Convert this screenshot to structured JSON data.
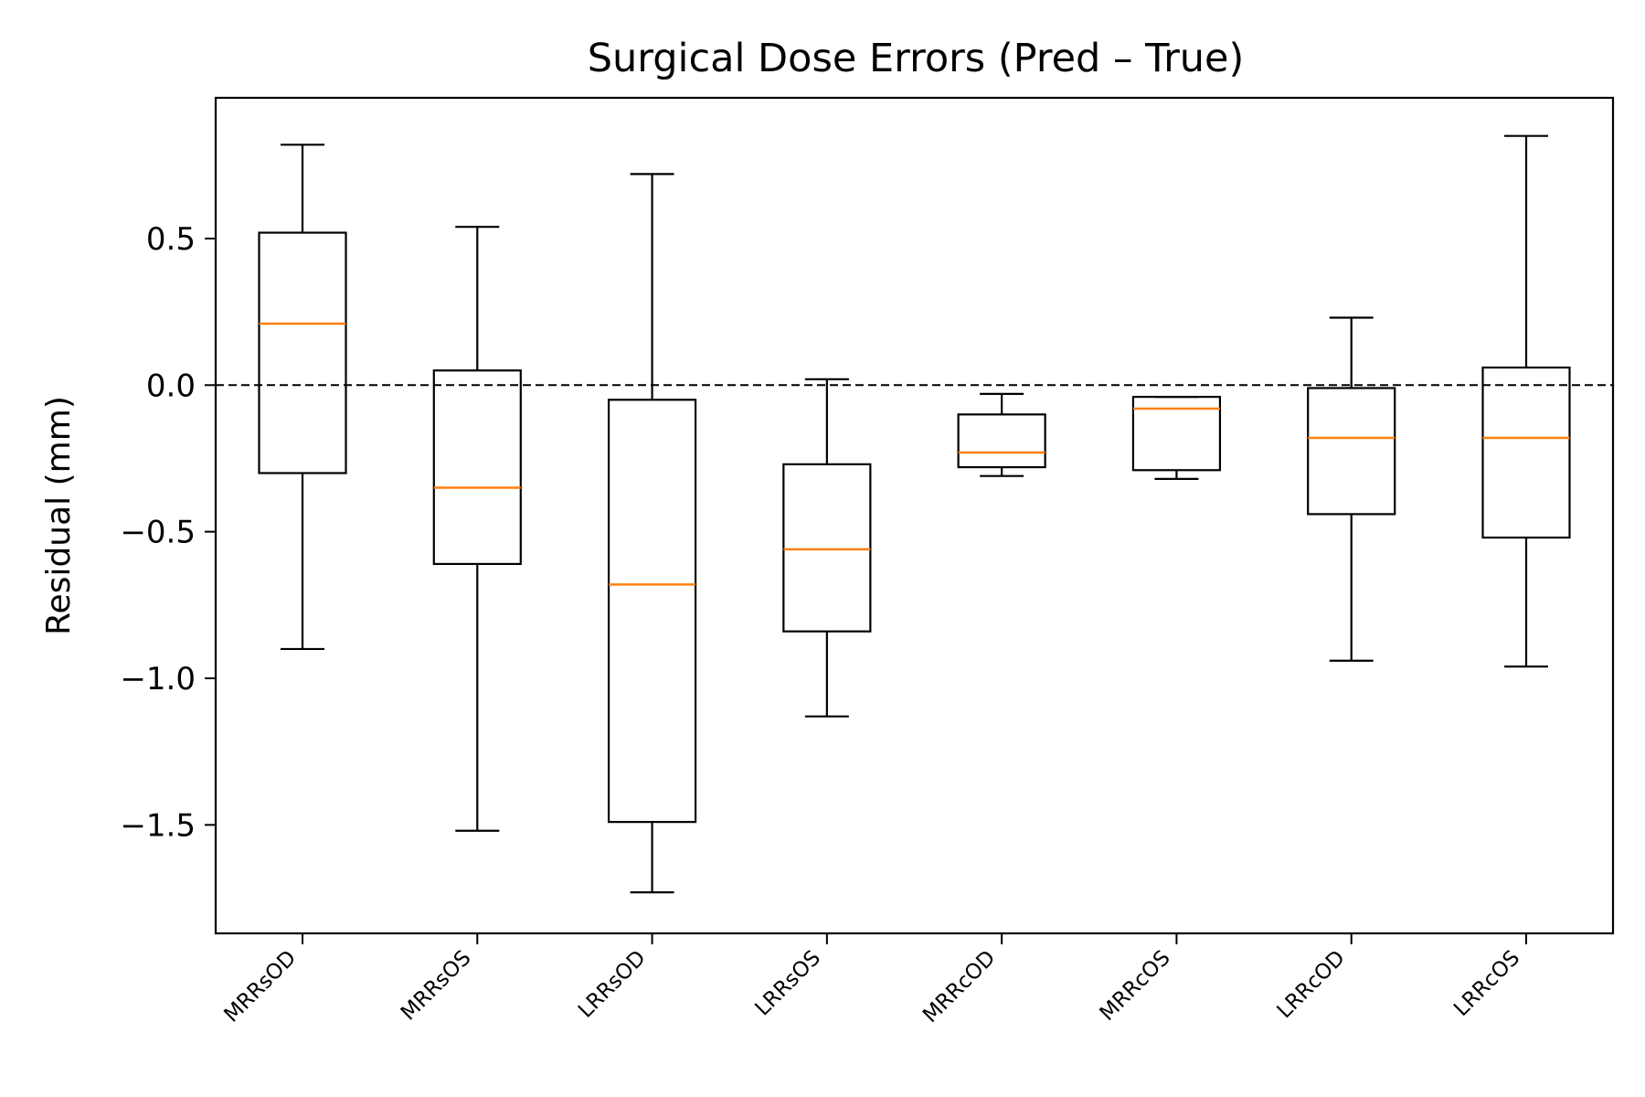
{
  "chart_data": {
    "type": "box",
    "title": "Surgical Dose Errors (Pred – True)",
    "xlabel": "",
    "ylabel": "Residual (mm)",
    "ylim": [
      -1.87,
      0.98
    ],
    "yticks": [
      0.5,
      0.0,
      -0.5,
      -1.0,
      -1.5
    ],
    "ytick_labels": [
      "0.5",
      "0.0",
      "−0.5",
      "−1.0",
      "−1.5"
    ],
    "reference_line": {
      "y": 0.0,
      "style": "dashed",
      "color": "#000000"
    },
    "categories": [
      "MRRsOD",
      "MRRsOS",
      "LRRsOD",
      "LRRsOS",
      "MRRcOD",
      "MRRcOS",
      "LRRcOD",
      "LRRcOS"
    ],
    "boxes": [
      {
        "whisker_low": -0.9,
        "q1": -0.3,
        "median": 0.21,
        "q3": 0.52,
        "whisker_high": 0.82
      },
      {
        "whisker_low": -1.52,
        "q1": -0.61,
        "median": -0.35,
        "q3": 0.05,
        "whisker_high": 0.54
      },
      {
        "whisker_low": -1.73,
        "q1": -1.49,
        "median": -0.68,
        "q3": -0.05,
        "whisker_high": 0.72
      },
      {
        "whisker_low": -1.13,
        "q1": -0.84,
        "median": -0.56,
        "q3": -0.27,
        "whisker_high": 0.02
      },
      {
        "whisker_low": -0.31,
        "q1": -0.28,
        "median": -0.23,
        "q3": -0.1,
        "whisker_high": -0.03
      },
      {
        "whisker_low": -0.32,
        "q1": -0.29,
        "median": -0.08,
        "q3": -0.04,
        "whisker_high": -0.04
      },
      {
        "whisker_low": -0.94,
        "q1": -0.44,
        "median": -0.18,
        "q3": -0.01,
        "whisker_high": 0.23
      },
      {
        "whisker_low": -0.96,
        "q1": -0.52,
        "median": -0.18,
        "q3": 0.06,
        "whisker_high": 0.85
      }
    ],
    "colors": {
      "box": "#000000",
      "median": "#ff7f0e",
      "axes": "#000000"
    },
    "grid": false,
    "legend": "none"
  }
}
